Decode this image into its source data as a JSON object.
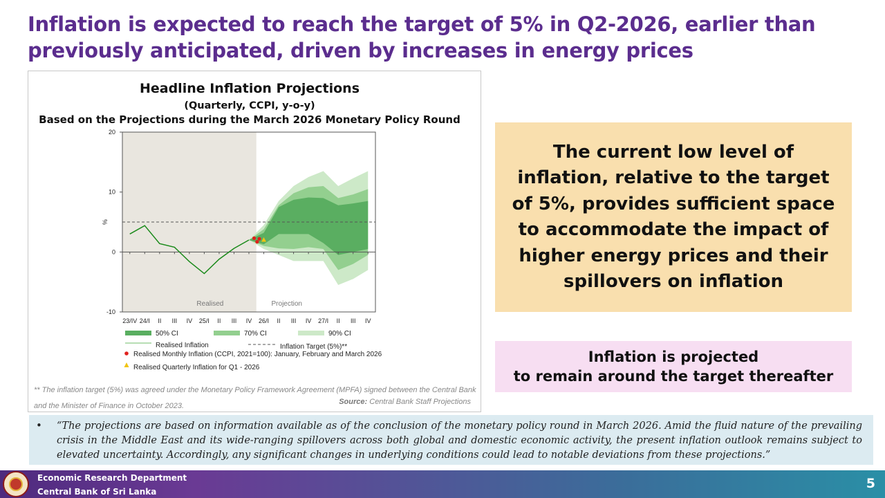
{
  "slide": {
    "title": "Inflation is expected to reach the target of 5% in Q2-2026, earlier than previously anticipated, driven by increases in energy prices",
    "footnote": "** The inflation target (5%) was agreed under the Monetary Policy Framework Agreement (MPFA) signed between the Central Bank and the Minister of Finance in October 2023.",
    "source_label": "Source:",
    "source_text": "Central Bank Staff Projections",
    "main_message": "The current low level of inflation, relative to the target of 5%, provides sufficient space to accommodate the impact of higher energy prices and their spillovers on inflation",
    "secondary_message_line1": "Inflation is projected",
    "secondary_message_line2": "to remain around the target thereafter",
    "note_bullet": "•",
    "note": "“The projections are based on information available as of the conclusion of the monetary policy round in March 2026. Amid the fluid nature of the prevailing crisis in the Middle East and its wide-ranging spillovers across both global and domestic economic activity, the present inflation outlook remains subject to elevated uncertainty. Accordingly, any significant changes in underlying conditions could lead to notable deviations from these projections.”",
    "footer_dept": "Economic Research Department",
    "footer_bank": "Central Bank of Sri Lanka",
    "page_number": "5",
    "colors": {
      "title": "#5b2d8e",
      "ci50": "#5aae61",
      "ci70": "#93cf8f",
      "ci90": "#cde9c8",
      "realised_line": "#1a8a1a",
      "realised_shade": "#e9e6df",
      "monthly_dot": "#e0201c",
      "quarterly_marker": "#f1c40f",
      "main_box": "#f9dfae",
      "pink_box": "#f7def2",
      "note_box": "#dcebf1"
    }
  },
  "chart_data": {
    "type": "area",
    "title": "Headline Inflation Projections",
    "subtitle": "(Quarterly, CCPI, y-o-y)",
    "subtitle2": "Based on the Projections during the March 2026 Monetary Policy Round",
    "ylabel": "%",
    "ylim": [
      -10,
      20
    ],
    "yticks": [
      "20",
      "10",
      "0",
      "-10"
    ],
    "categories": [
      "23/IV",
      "24/I",
      "II",
      "III",
      "IV",
      "25/I",
      "II",
      "III",
      "IV",
      "26/I",
      "II",
      "III",
      "IV",
      "27/I",
      "II",
      "III",
      "IV"
    ],
    "region_labels": {
      "realised": "Realised",
      "projection": "Projection"
    },
    "realised_inflation": [
      3.0,
      4.4,
      1.4,
      0.8,
      -1.6,
      -3.6,
      -1.2,
      0.6,
      2.0
    ],
    "projection_start_index": 8,
    "ci90": {
      "upper": [
        2.0,
        4.5,
        8.5,
        11.0,
        12.5,
        13.5,
        11.0,
        12.3,
        13.5
      ],
      "lower": [
        2.0,
        0.5,
        -0.5,
        -1.5,
        -1.5,
        -1.5,
        -5.5,
        -4.5,
        -3.0
      ]
    },
    "ci70": {
      "upper": [
        2.0,
        3.8,
        7.8,
        9.8,
        10.8,
        11.0,
        9.0,
        9.6,
        10.5
      ],
      "lower": [
        2.0,
        1.0,
        0.6,
        0.5,
        0.8,
        0.5,
        -3.0,
        -2.0,
        -0.5
      ]
    },
    "ci50": {
      "upper": [
        2.0,
        3.2,
        7.5,
        8.7,
        9.1,
        9.0,
        7.8,
        8.1,
        8.5
      ],
      "lower": [
        2.0,
        1.3,
        3.0,
        3.0,
        3.0,
        1.5,
        -0.5,
        0.0,
        0.5
      ]
    },
    "inflation_target": 5,
    "realised_monthly": [
      {
        "x": 8.35,
        "y": 2.3
      },
      {
        "x": 8.55,
        "y": 1.7
      },
      {
        "x": 8.7,
        "y": 2.2
      }
    ],
    "realised_quarterly_q1_2026": {
      "x": 9,
      "y": 2.0
    },
    "legend": {
      "ci50": "50% CI",
      "ci70": "70% CI",
      "ci90": "90% CI",
      "realised": "Realised Inflation",
      "target": "Inflation Target (5%)**",
      "monthly": "Realised Monthly Inflation (CCPI, 2021=100): January, February and March 2026",
      "quarterly": "Realised Quarterly Inflation for Q1 - 2026"
    }
  }
}
